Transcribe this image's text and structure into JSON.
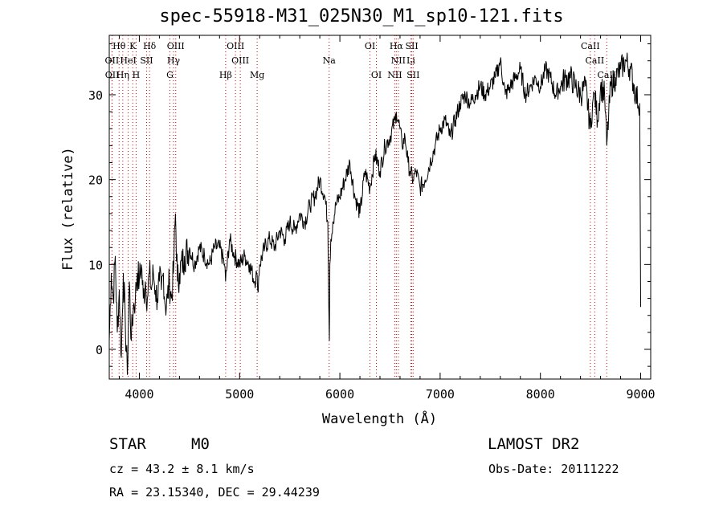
{
  "title": "spec-55918-M31_025N30_M1_sp10-121.fits",
  "info": {
    "class_label": "STAR",
    "subclass": "M0",
    "survey": "LAMOST  DR2",
    "cz": "cz = 43.2 ± 8.1 km/s",
    "obs_date": "Obs-Date: 20111222",
    "radec": "RA =  23.15340, DEC =  29.44239"
  },
  "colors": {
    "line": "#000000",
    "marker": "#cc0000",
    "background": "#ffffff"
  },
  "chart_data": {
    "type": "line",
    "title": "spec-55918-M31_025N30_M1_sp10-121.fits",
    "xlabel": "Wavelength (Å)",
    "ylabel": "Flux (relative)",
    "xlim": [
      3700,
      9100
    ],
    "ylim": [
      -3.5,
      37
    ],
    "x_ticks": [
      4000,
      5000,
      6000,
      7000,
      8000,
      9000
    ],
    "y_ticks": [
      0,
      10,
      20,
      30
    ],
    "grid": false,
    "series": [
      {
        "x": [
          3700,
          3720,
          3740,
          3760,
          3780,
          3800,
          3820,
          3840,
          3860,
          3880,
          3900,
          3920,
          3940,
          3960,
          3980,
          4000,
          4020,
          4040,
          4060,
          4080,
          4100,
          4120,
          4140,
          4160,
          4180,
          4200,
          4220,
          4240,
          4260,
          4280,
          4300,
          4320,
          4340,
          4360,
          4380,
          4400,
          4450,
          4500,
          4550,
          4600,
          4650,
          4700,
          4750,
          4800,
          4850,
          4860,
          4900,
          4950,
          5000,
          5050,
          5100,
          5150,
          5170,
          5180,
          5200,
          5250,
          5300,
          5350,
          5400,
          5450,
          5500,
          5550,
          5600,
          5650,
          5700,
          5750,
          5800,
          5850,
          5880,
          5890,
          5895,
          5900,
          5910,
          5930,
          5960,
          6000,
          6050,
          6100,
          6150,
          6200,
          6250,
          6300,
          6350,
          6400,
          6450,
          6500,
          6550,
          6563,
          6580,
          6600,
          6620,
          6650,
          6680,
          6700,
          6730,
          6760,
          6800,
          6850,
          6900,
          6950,
          7000,
          7050,
          7100,
          7150,
          7200,
          7250,
          7300,
          7350,
          7400,
          7450,
          7500,
          7550,
          7600,
          7650,
          7700,
          7750,
          7800,
          7850,
          7900,
          7950,
          8000,
          8050,
          8100,
          8150,
          8200,
          8250,
          8300,
          8350,
          8400,
          8450,
          8498,
          8520,
          8542,
          8570,
          8600,
          8640,
          8662,
          8700,
          8750,
          8800,
          8850,
          8900,
          8950,
          8990,
          9000
        ],
        "y": [
          1,
          9,
          6,
          11,
          2,
          7,
          -1,
          9,
          3,
          -3,
          8,
          1,
          5,
          6,
          9,
          8,
          10,
          6,
          8,
          6,
          9,
          7,
          9,
          7,
          6,
          8,
          7,
          9,
          5,
          6,
          8,
          6,
          9,
          16,
          8,
          9,
          11,
          12,
          10,
          12,
          11,
          10,
          12,
          12,
          10,
          8,
          13,
          11,
          10,
          11,
          10,
          8,
          9,
          7,
          10,
          12,
          13,
          12,
          14,
          13,
          15,
          14,
          16,
          15,
          17,
          18,
          20,
          18,
          15,
          5,
          1,
          10,
          13,
          15,
          17,
          18,
          20,
          22,
          18,
          16,
          21,
          19,
          23,
          21,
          24,
          25,
          27,
          28,
          27,
          26,
          24,
          25,
          22,
          21,
          20,
          21,
          19,
          20,
          22,
          24,
          26,
          27,
          25,
          27,
          29,
          30,
          29,
          30,
          31,
          30,
          31,
          32,
          34,
          30,
          31,
          32,
          33,
          30,
          31,
          32,
          31,
          33,
          32,
          30,
          31,
          32,
          32,
          31,
          30,
          31,
          26,
          29,
          30,
          27,
          31,
          30,
          24,
          31,
          32,
          33,
          34,
          33,
          30,
          29,
          5
        ]
      }
    ],
    "lines": [
      {
        "name": "Hθ",
        "x": 3798,
        "row": 1
      },
      {
        "name": "K",
        "x": 3934,
        "row": 1
      },
      {
        "name": "Hδ",
        "x": 4102,
        "row": 1
      },
      {
        "name": "OIII",
        "x": 4363,
        "row": 1
      },
      {
        "name": "OIII",
        "x": 4959,
        "row": 1
      },
      {
        "name": "OI",
        "x": 6300,
        "row": 1
      },
      {
        "name": "Hα",
        "x": 6563,
        "row": 1
      },
      {
        "name": "SII",
        "x": 6717,
        "row": 1
      },
      {
        "name": "CaII",
        "x": 8498,
        "row": 1
      },
      {
        "name": "OII",
        "x": 3727,
        "row": 2
      },
      {
        "name": "HeI",
        "x": 3889,
        "row": 2
      },
      {
        "name": "SII",
        "x": 4072,
        "row": 2
      },
      {
        "name": "Hγ",
        "x": 4341,
        "row": 2
      },
      {
        "name": "OIII",
        "x": 5007,
        "row": 2
      },
      {
        "name": "Na",
        "x": 5893,
        "row": 2
      },
      {
        "name": "NII",
        "x": 6583,
        "row": 2
      },
      {
        "name": "Li",
        "x": 6708,
        "row": 2
      },
      {
        "name": "CaII",
        "x": 8542,
        "row": 2
      },
      {
        "name": "OII",
        "x": 3729,
        "row": 3
      },
      {
        "name": "Hη",
        "x": 3835,
        "row": 3
      },
      {
        "name": "H",
        "x": 3968,
        "row": 3
      },
      {
        "name": "G",
        "x": 4305,
        "row": 3
      },
      {
        "name": "Hβ",
        "x": 4861,
        "row": 3
      },
      {
        "name": "Mg",
        "x": 5175,
        "row": 3
      },
      {
        "name": "OI",
        "x": 6364,
        "row": 3
      },
      {
        "name": "NII",
        "x": 6548,
        "row": 3
      },
      {
        "name": "SII",
        "x": 6731,
        "row": 3
      },
      {
        "name": "CaII",
        "x": 8662,
        "row": 3
      }
    ]
  }
}
